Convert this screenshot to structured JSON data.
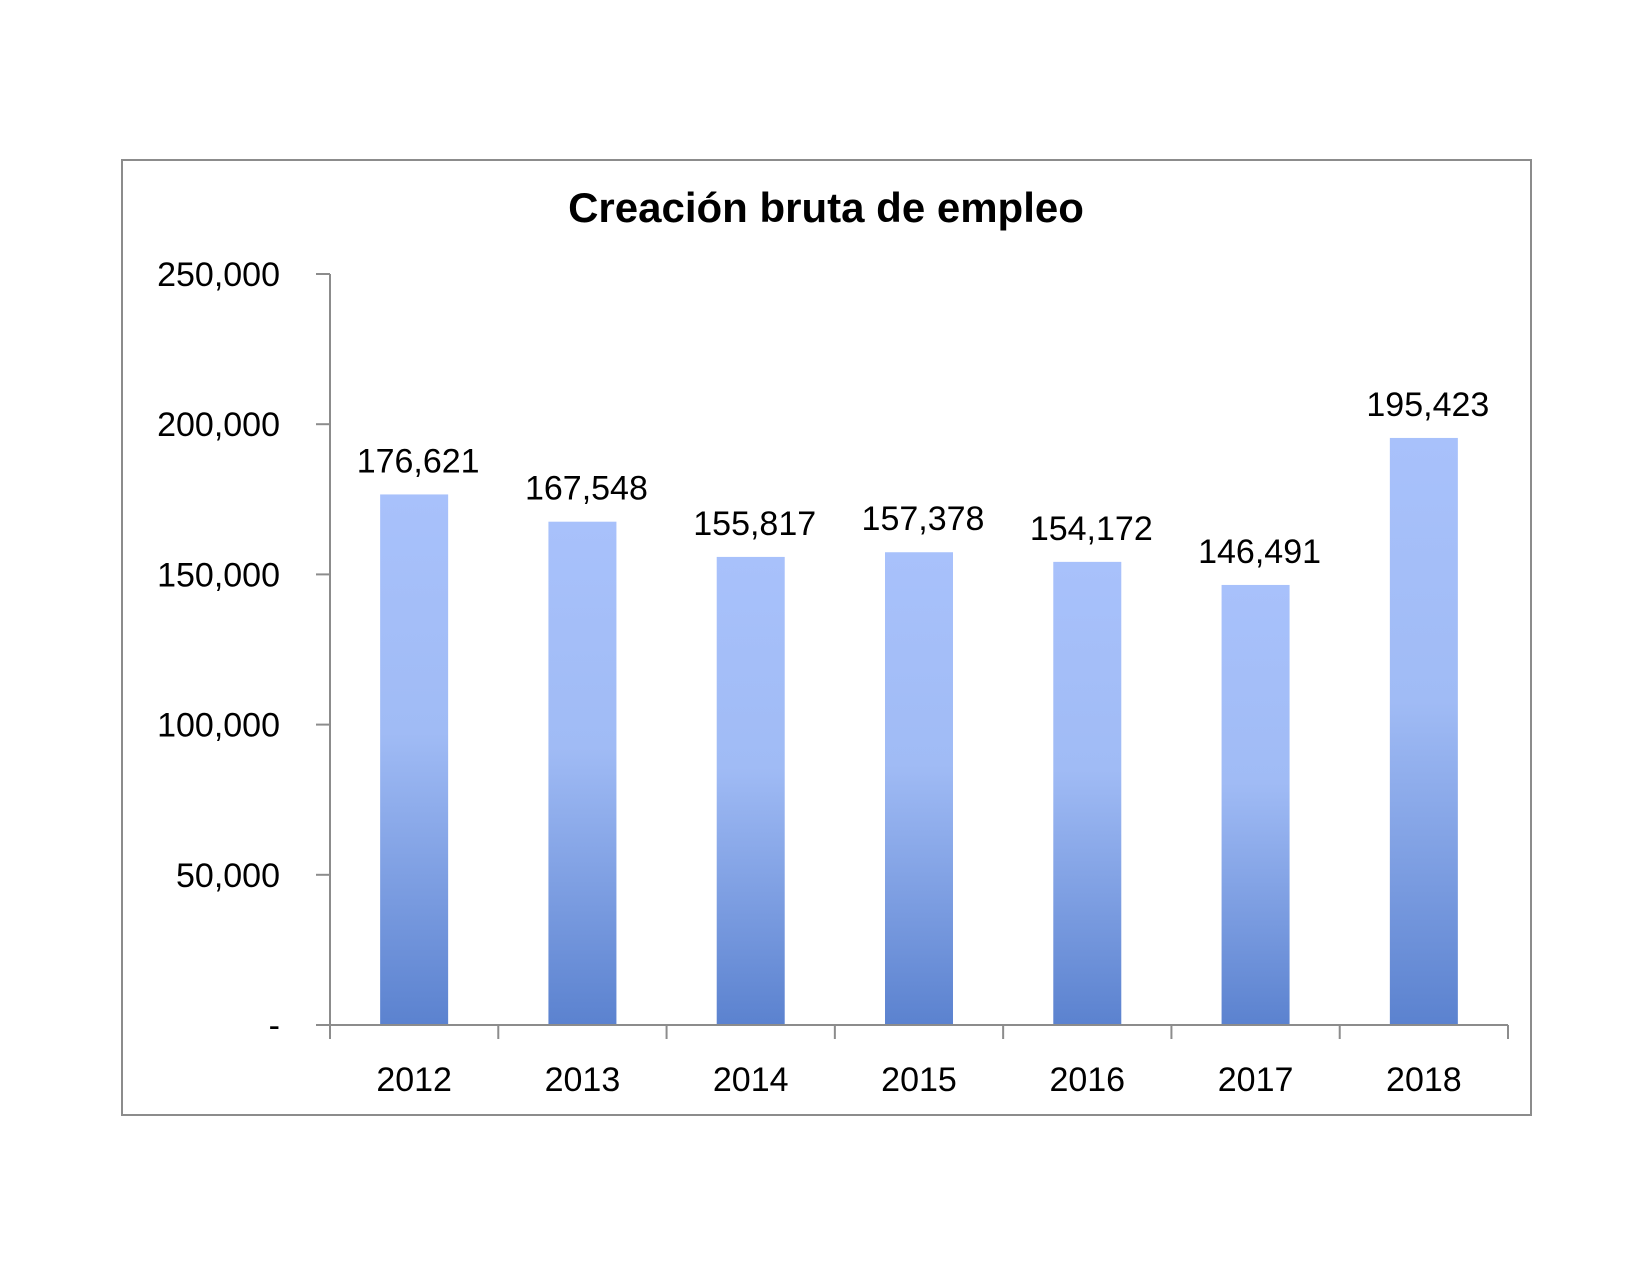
{
  "chart_data": {
    "type": "bar",
    "title": "Creación bruta de empleo",
    "xlabel": "",
    "ylabel": "",
    "categories": [
      "2012",
      "2013",
      "2014",
      "2015",
      "2016",
      "2017",
      "2018"
    ],
    "values": [
      176621,
      167548,
      155817,
      157378,
      154172,
      146491,
      195423
    ],
    "data_labels": [
      "176,621",
      "167,548",
      "155,817",
      "157,378",
      "154,172",
      "146,491",
      "195,423"
    ],
    "ylim": [
      0,
      250000
    ],
    "yticks": [
      0,
      50000,
      100000,
      150000,
      200000,
      250000
    ],
    "ytick_labels": [
      "-",
      "50,000",
      "100,000",
      "150,000",
      "200,000",
      "250,000"
    ],
    "grid": false,
    "legend": "none",
    "bar_color_top": "#a8c1fb",
    "bar_color_bottom": "#5b82cf"
  }
}
